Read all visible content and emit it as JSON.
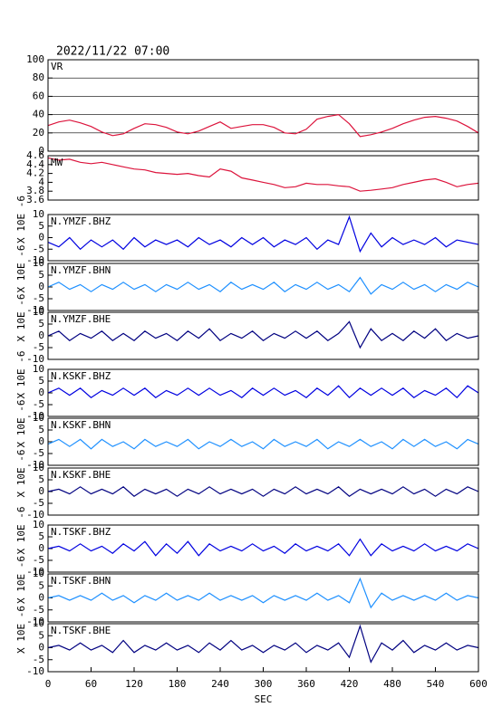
{
  "chart_data": [
    {
      "type": "line",
      "title": "2022/11/22 07:00",
      "xlim": [
        0,
        600
      ],
      "ylim": [
        0,
        100
      ],
      "yticks": [
        0,
        20,
        40,
        60,
        80,
        100
      ],
      "grid": true,
      "x": [
        0,
        15,
        30,
        45,
        60,
        75,
        90,
        105,
        120,
        135,
        150,
        165,
        180,
        195,
        210,
        225,
        240,
        255,
        270,
        285,
        300,
        315,
        330,
        345,
        360,
        375,
        390,
        405,
        420,
        435,
        450,
        465,
        480,
        495,
        510,
        525,
        540,
        555,
        570,
        585,
        600
      ],
      "series": [
        {
          "name": "VR",
          "color": "#dc143c",
          "values": [
            28,
            32,
            34,
            31,
            27,
            21,
            17,
            19,
            25,
            30,
            29,
            26,
            21,
            19,
            22,
            27,
            32,
            25,
            27,
            29,
            29,
            26,
            20,
            19,
            24,
            35,
            38,
            40,
            30,
            16,
            18,
            21,
            25,
            30,
            34,
            37,
            38,
            36,
            33,
            27,
            20
          ]
        }
      ]
    },
    {
      "type": "line",
      "xlim": [
        0,
        600
      ],
      "ylim": [
        3.6,
        4.6
      ],
      "yticks": [
        3.6,
        3.8,
        4.0,
        4.2,
        4.4,
        4.6
      ],
      "grid": false,
      "x": [
        0,
        15,
        30,
        45,
        60,
        75,
        90,
        105,
        120,
        135,
        150,
        165,
        180,
        195,
        210,
        225,
        240,
        255,
        270,
        285,
        300,
        315,
        330,
        345,
        360,
        375,
        390,
        405,
        420,
        435,
        450,
        465,
        480,
        495,
        510,
        525,
        540,
        555,
        570,
        585,
        600
      ],
      "series": [
        {
          "name": "MW",
          "color": "#dc143c",
          "values": [
            4.55,
            4.5,
            4.52,
            4.45,
            4.42,
            4.45,
            4.4,
            4.35,
            4.3,
            4.28,
            4.22,
            4.2,
            4.18,
            4.2,
            4.15,
            4.12,
            4.3,
            4.25,
            4.1,
            4.05,
            4.0,
            3.95,
            3.88,
            3.9,
            3.98,
            3.95,
            3.95,
            3.92,
            3.9,
            3.8,
            3.82,
            3.85,
            3.88,
            3.95,
            4.0,
            4.05,
            4.08,
            4.0,
            3.9,
            3.95,
            3.98
          ]
        }
      ]
    },
    {
      "type": "line",
      "ylabel": "X 10E -6",
      "xlim": [
        0,
        600
      ],
      "ylim": [
        -10,
        10
      ],
      "yticks": [
        -10,
        -5,
        0,
        5,
        10
      ],
      "grid": false,
      "x": [
        0,
        15,
        30,
        45,
        60,
        75,
        90,
        105,
        120,
        135,
        150,
        165,
        180,
        195,
        210,
        225,
        240,
        255,
        270,
        285,
        300,
        315,
        330,
        345,
        360,
        375,
        390,
        405,
        420,
        435,
        450,
        465,
        480,
        495,
        510,
        525,
        540,
        555,
        570,
        585,
        600
      ],
      "series": [
        {
          "name": "N.YMZF.BHZ",
          "color": "#0000e0",
          "values": [
            -2,
            -4,
            0,
            -5,
            -1,
            -4,
            -1,
            -5,
            0,
            -4,
            -1,
            -3,
            -1,
            -4,
            0,
            -3,
            -1,
            -4,
            0,
            -3,
            0,
            -4,
            -1,
            -3,
            0,
            -5,
            -1,
            -3,
            9,
            -6,
            2,
            -4,
            0,
            -3,
            -1,
            -3,
            0,
            -4,
            -1,
            -2,
            -3
          ]
        }
      ]
    },
    {
      "type": "line",
      "ylabel": "X 10E -6",
      "xlim": [
        0,
        600
      ],
      "ylim": [
        -10,
        10
      ],
      "yticks": [
        -10,
        -5,
        0,
        5,
        10
      ],
      "grid": false,
      "x": [
        0,
        15,
        30,
        45,
        60,
        75,
        90,
        105,
        120,
        135,
        150,
        165,
        180,
        195,
        210,
        225,
        240,
        255,
        270,
        285,
        300,
        315,
        330,
        345,
        360,
        375,
        390,
        405,
        420,
        435,
        450,
        465,
        480,
        495,
        510,
        525,
        540,
        555,
        570,
        585,
        600
      ],
      "series": [
        {
          "name": "N.YMZF.BHN",
          "color": "#1e90ff",
          "values": [
            0,
            2,
            -1,
            1,
            -2,
            1,
            -1,
            2,
            -1,
            1,
            -2,
            1,
            -1,
            2,
            -1,
            1,
            -2,
            2,
            -1,
            1,
            -1,
            2,
            -2,
            1,
            -1,
            2,
            -1,
            1,
            -2,
            4,
            -3,
            1,
            -1,
            2,
            -1,
            1,
            -2,
            1,
            -1,
            2,
            0
          ]
        }
      ]
    },
    {
      "type": "line",
      "ylabel": "X 10E -6",
      "xlim": [
        0,
        600
      ],
      "ylim": [
        -10,
        10
      ],
      "yticks": [
        -10,
        -5,
        0,
        5,
        10
      ],
      "grid": false,
      "x": [
        0,
        15,
        30,
        45,
        60,
        75,
        90,
        105,
        120,
        135,
        150,
        165,
        180,
        195,
        210,
        225,
        240,
        255,
        270,
        285,
        300,
        315,
        330,
        345,
        360,
        375,
        390,
        405,
        420,
        435,
        450,
        465,
        480,
        495,
        510,
        525,
        540,
        555,
        570,
        585,
        600
      ],
      "series": [
        {
          "name": "N.YMZF.BHE",
          "color": "#000080",
          "values": [
            0,
            2,
            -2,
            1,
            -1,
            2,
            -2,
            1,
            -2,
            2,
            -1,
            1,
            -2,
            2,
            -1,
            3,
            -2,
            1,
            -1,
            2,
            -2,
            1,
            -1,
            2,
            -1,
            2,
            -2,
            1,
            6,
            -5,
            3,
            -2,
            1,
            -2,
            2,
            -1,
            3,
            -2,
            1,
            -1,
            0
          ]
        }
      ]
    },
    {
      "type": "line",
      "ylabel": "X 10E -6",
      "xlim": [
        0,
        600
      ],
      "ylim": [
        -10,
        10
      ],
      "yticks": [
        -10,
        -5,
        0,
        5,
        10
      ],
      "grid": false,
      "x": [
        0,
        15,
        30,
        45,
        60,
        75,
        90,
        105,
        120,
        135,
        150,
        165,
        180,
        195,
        210,
        225,
        240,
        255,
        270,
        285,
        300,
        315,
        330,
        345,
        360,
        375,
        390,
        405,
        420,
        435,
        450,
        465,
        480,
        495,
        510,
        525,
        540,
        555,
        570,
        585,
        600
      ],
      "series": [
        {
          "name": "N.KSKF.BHZ",
          "color": "#0000e0",
          "values": [
            0,
            2,
            -1,
            2,
            -2,
            1,
            -1,
            2,
            -1,
            2,
            -2,
            1,
            -1,
            2,
            -1,
            2,
            -1,
            1,
            -2,
            2,
            -1,
            2,
            -1,
            1,
            -2,
            2,
            -1,
            3,
            -2,
            2,
            -1,
            2,
            -1,
            2,
            -2,
            1,
            -1,
            2,
            -2,
            3,
            0
          ]
        }
      ]
    },
    {
      "type": "line",
      "ylabel": "X 10E -6",
      "xlim": [
        0,
        600
      ],
      "ylim": [
        -10,
        10
      ],
      "yticks": [
        -10,
        -5,
        0,
        5,
        10
      ],
      "grid": false,
      "x": [
        0,
        15,
        30,
        45,
        60,
        75,
        90,
        105,
        120,
        135,
        150,
        165,
        180,
        195,
        210,
        225,
        240,
        255,
        270,
        285,
        300,
        315,
        330,
        345,
        360,
        375,
        390,
        405,
        420,
        435,
        450,
        465,
        480,
        495,
        510,
        525,
        540,
        555,
        570,
        585,
        600
      ],
      "series": [
        {
          "name": "N.KSKF.BHN",
          "color": "#1e90ff",
          "values": [
            -1,
            1,
            -2,
            1,
            -3,
            1,
            -2,
            0,
            -3,
            1,
            -2,
            0,
            -2,
            1,
            -3,
            0,
            -2,
            1,
            -2,
            0,
            -3,
            1,
            -2,
            0,
            -2,
            1,
            -3,
            0,
            -2,
            1,
            -2,
            0,
            -3,
            1,
            -2,
            1,
            -2,
            0,
            -3,
            1,
            -1
          ]
        }
      ]
    },
    {
      "type": "line",
      "ylabel": "X 10E -6",
      "xlim": [
        0,
        600
      ],
      "ylim": [
        -10,
        10
      ],
      "yticks": [
        -10,
        -5,
        0,
        5,
        10
      ],
      "grid": false,
      "x": [
        0,
        15,
        30,
        45,
        60,
        75,
        90,
        105,
        120,
        135,
        150,
        165,
        180,
        195,
        210,
        225,
        240,
        255,
        270,
        285,
        300,
        315,
        330,
        345,
        360,
        375,
        390,
        405,
        420,
        435,
        450,
        465,
        480,
        495,
        510,
        525,
        540,
        555,
        570,
        585,
        600
      ],
      "series": [
        {
          "name": "N.KSKF.BHE",
          "color": "#000080",
          "values": [
            0,
            1,
            -1,
            2,
            -1,
            1,
            -1,
            2,
            -2,
            1,
            -1,
            1,
            -2,
            1,
            -1,
            2,
            -1,
            1,
            -1,
            1,
            -2,
            1,
            -1,
            2,
            -1,
            1,
            -1,
            2,
            -2,
            1,
            -1,
            1,
            -1,
            2,
            -1,
            1,
            -2,
            1,
            -1,
            2,
            0
          ]
        }
      ]
    },
    {
      "type": "line",
      "ylabel": "X 10E -6",
      "xlim": [
        0,
        600
      ],
      "ylim": [
        -10,
        10
      ],
      "yticks": [
        -10,
        -5,
        0,
        5,
        10
      ],
      "grid": false,
      "x": [
        0,
        15,
        30,
        45,
        60,
        75,
        90,
        105,
        120,
        135,
        150,
        165,
        180,
        195,
        210,
        225,
        240,
        255,
        270,
        285,
        300,
        315,
        330,
        345,
        360,
        375,
        390,
        405,
        420,
        435,
        450,
        465,
        480,
        495,
        510,
        525,
        540,
        555,
        570,
        585,
        600
      ],
      "series": [
        {
          "name": "N.TSKF.BHZ",
          "color": "#0000e0",
          "values": [
            0,
            1,
            -1,
            2,
            -1,
            1,
            -2,
            2,
            -1,
            3,
            -3,
            2,
            -2,
            3,
            -3,
            2,
            -1,
            1,
            -1,
            2,
            -1,
            1,
            -2,
            2,
            -1,
            1,
            -1,
            2,
            -3,
            4,
            -3,
            2,
            -1,
            1,
            -1,
            2,
            -1,
            1,
            -1,
            2,
            0
          ]
        }
      ]
    },
    {
      "type": "line",
      "ylabel": "X 10E -6",
      "xlim": [
        0,
        600
      ],
      "ylim": [
        -10,
        10
      ],
      "yticks": [
        -10,
        -5,
        0,
        5,
        10
      ],
      "grid": false,
      "x": [
        0,
        15,
        30,
        45,
        60,
        75,
        90,
        105,
        120,
        135,
        150,
        165,
        180,
        195,
        210,
        225,
        240,
        255,
        270,
        285,
        300,
        315,
        330,
        345,
        360,
        375,
        390,
        405,
        420,
        435,
        450,
        465,
        480,
        495,
        510,
        525,
        540,
        555,
        570,
        585,
        600
      ],
      "series": [
        {
          "name": "N.TSKF.BHN",
          "color": "#1e90ff",
          "values": [
            0,
            1,
            -1,
            1,
            -1,
            2,
            -1,
            1,
            -2,
            1,
            -1,
            2,
            -1,
            1,
            -1,
            2,
            -1,
            1,
            -1,
            1,
            -2,
            1,
            -1,
            1,
            -1,
            2,
            -1,
            1,
            -2,
            8,
            -4,
            2,
            -1,
            1,
            -1,
            1,
            -1,
            2,
            -1,
            1,
            0
          ]
        }
      ]
    },
    {
      "type": "line",
      "ylabel": "X 10E -6",
      "xlabel": "SEC",
      "xlim": [
        0,
        600
      ],
      "ylim": [
        -10,
        10
      ],
      "yticks": [
        -10,
        -5,
        0,
        5,
        10
      ],
      "xticks": [
        0,
        60,
        120,
        180,
        240,
        300,
        360,
        420,
        480,
        540,
        600
      ],
      "grid": false,
      "x": [
        0,
        15,
        30,
        45,
        60,
        75,
        90,
        105,
        120,
        135,
        150,
        165,
        180,
        195,
        210,
        225,
        240,
        255,
        270,
        285,
        300,
        315,
        330,
        345,
        360,
        375,
        390,
        405,
        420,
        435,
        450,
        465,
        480,
        495,
        510,
        525,
        540,
        555,
        570,
        585,
        600
      ],
      "series": [
        {
          "name": "N.TSKF.BHE",
          "color": "#000080",
          "values": [
            0,
            1,
            -1,
            2,
            -1,
            1,
            -2,
            3,
            -2,
            1,
            -1,
            2,
            -1,
            1,
            -2,
            2,
            -1,
            3,
            -1,
            1,
            -2,
            1,
            -1,
            2,
            -2,
            1,
            -1,
            2,
            -4,
            9,
            -6,
            2,
            -1,
            3,
            -2,
            1,
            -1,
            2,
            -1,
            1,
            0
          ]
        }
      ]
    }
  ]
}
